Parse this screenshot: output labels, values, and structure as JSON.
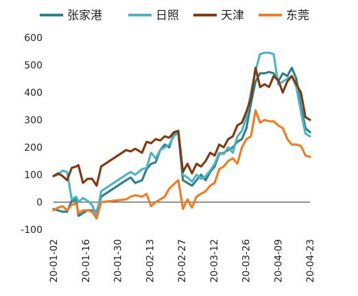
{
  "chart_data": {
    "type": "line",
    "title": "",
    "xlabel": "",
    "ylabel": "",
    "ylim": [
      -100,
      600
    ],
    "yticks": [
      -100,
      0,
      100,
      200,
      300,
      400,
      500,
      600
    ],
    "x_tick_labels": [
      "20-01-02",
      "20-01-16",
      "20-01-30",
      "20-02-13",
      "20-02-27",
      "20-03-12",
      "20-03-26",
      "20-04-09",
      "20-04-23"
    ],
    "x_range": [
      "2020-01-02",
      "2020-04-24"
    ],
    "grid": false,
    "legend_position": "top",
    "series": [
      {
        "name": "张家港",
        "color": "#2e7f8c",
        "points": [
          [
            "2020-01-02",
            -25
          ],
          [
            "2020-01-04",
            -30
          ],
          [
            "2020-01-06",
            -35
          ],
          [
            "2020-01-08",
            -35
          ],
          [
            "2020-01-10",
            5
          ],
          [
            "2020-01-12",
            10
          ],
          [
            "2020-01-13",
            -50
          ],
          [
            "2020-01-15",
            -40
          ],
          [
            "2020-01-17",
            -30
          ],
          [
            "2020-01-19",
            -30
          ],
          [
            "2020-01-21",
            -35
          ],
          [
            "2020-01-23",
            20
          ],
          [
            "2020-02-03",
            80
          ],
          [
            "2020-02-05",
            90
          ],
          [
            "2020-02-07",
            70
          ],
          [
            "2020-02-10",
            80
          ],
          [
            "2020-02-12",
            120
          ],
          [
            "2020-02-14",
            140
          ],
          [
            "2020-02-16",
            145
          ],
          [
            "2020-02-18",
            190
          ],
          [
            "2020-02-20",
            210
          ],
          [
            "2020-02-22",
            200
          ],
          [
            "2020-02-24",
            250
          ],
          [
            "2020-02-26",
            250
          ],
          [
            "2020-02-28",
            80
          ],
          [
            "2020-03-01",
            70
          ],
          [
            "2020-03-03",
            60
          ],
          [
            "2020-03-05",
            80
          ],
          [
            "2020-03-07",
            100
          ],
          [
            "2020-03-09",
            80
          ],
          [
            "2020-03-11",
            110
          ],
          [
            "2020-03-13",
            130
          ],
          [
            "2020-03-15",
            175
          ],
          [
            "2020-03-17",
            180
          ],
          [
            "2020-03-19",
            190
          ],
          [
            "2020-03-21",
            200
          ],
          [
            "2020-03-23",
            220
          ],
          [
            "2020-03-25",
            230
          ],
          [
            "2020-03-27",
            270
          ],
          [
            "2020-03-29",
            360
          ],
          [
            "2020-03-31",
            440
          ],
          [
            "2020-04-02",
            470
          ],
          [
            "2020-04-04",
            470
          ],
          [
            "2020-04-06",
            475
          ],
          [
            "2020-04-08",
            470
          ],
          [
            "2020-04-10",
            440
          ],
          [
            "2020-04-12",
            470
          ],
          [
            "2020-04-14",
            460
          ],
          [
            "2020-04-16",
            490
          ],
          [
            "2020-04-18",
            450
          ],
          [
            "2020-04-20",
            350
          ],
          [
            "2020-04-22",
            270
          ],
          [
            "2020-04-24",
            255
          ]
        ]
      },
      {
        "name": "日照",
        "color": "#4fb3c6",
        "points": [
          [
            "2020-01-02",
            95
          ],
          [
            "2020-01-04",
            100
          ],
          [
            "2020-01-06",
            115
          ],
          [
            "2020-01-08",
            110
          ],
          [
            "2020-01-10",
            10
          ],
          [
            "2020-01-12",
            20
          ],
          [
            "2020-01-13",
            0
          ],
          [
            "2020-01-15",
            15
          ],
          [
            "2020-01-17",
            5
          ],
          [
            "2020-01-19",
            -10
          ],
          [
            "2020-01-21",
            -50
          ],
          [
            "2020-01-23",
            40
          ],
          [
            "2020-02-03",
            100
          ],
          [
            "2020-02-05",
            110
          ],
          [
            "2020-02-07",
            100
          ],
          [
            "2020-02-10",
            120
          ],
          [
            "2020-02-12",
            125
          ],
          [
            "2020-02-14",
            180
          ],
          [
            "2020-02-16",
            160
          ],
          [
            "2020-02-18",
            190
          ],
          [
            "2020-02-20",
            200
          ],
          [
            "2020-02-22",
            210
          ],
          [
            "2020-02-24",
            240
          ],
          [
            "2020-02-26",
            255
          ],
          [
            "2020-02-28",
            100
          ],
          [
            "2020-03-01",
            90
          ],
          [
            "2020-03-03",
            75
          ],
          [
            "2020-03-05",
            100
          ],
          [
            "2020-03-07",
            85
          ],
          [
            "2020-03-09",
            95
          ],
          [
            "2020-03-11",
            115
          ],
          [
            "2020-03-13",
            140
          ],
          [
            "2020-03-15",
            180
          ],
          [
            "2020-03-17",
            175
          ],
          [
            "2020-03-19",
            200
          ],
          [
            "2020-03-21",
            180
          ],
          [
            "2020-03-23",
            240
          ],
          [
            "2020-03-25",
            260
          ],
          [
            "2020-03-27",
            310
          ],
          [
            "2020-03-29",
            400
          ],
          [
            "2020-03-31",
            480
          ],
          [
            "2020-04-02",
            540
          ],
          [
            "2020-04-04",
            545
          ],
          [
            "2020-04-06",
            545
          ],
          [
            "2020-04-08",
            540
          ],
          [
            "2020-04-10",
            430
          ],
          [
            "2020-04-12",
            440
          ],
          [
            "2020-04-14",
            450
          ],
          [
            "2020-04-16",
            460
          ],
          [
            "2020-04-18",
            420
          ],
          [
            "2020-04-20",
            330
          ],
          [
            "2020-04-22",
            250
          ],
          [
            "2020-04-24",
            240
          ]
        ]
      },
      {
        "name": "天津",
        "color": "#7f3a10",
        "points": [
          [
            "2020-01-02",
            95
          ],
          [
            "2020-01-04",
            105
          ],
          [
            "2020-01-06",
            95
          ],
          [
            "2020-01-08",
            80
          ],
          [
            "2020-01-10",
            125
          ],
          [
            "2020-01-12",
            130
          ],
          [
            "2020-01-13",
            135
          ],
          [
            "2020-01-15",
            70
          ],
          [
            "2020-01-17",
            85
          ],
          [
            "2020-01-19",
            85
          ],
          [
            "2020-01-21",
            60
          ],
          [
            "2020-01-23",
            130
          ],
          [
            "2020-02-03",
            190
          ],
          [
            "2020-02-05",
            185
          ],
          [
            "2020-02-07",
            195
          ],
          [
            "2020-02-10",
            180
          ],
          [
            "2020-02-12",
            220
          ],
          [
            "2020-02-14",
            215
          ],
          [
            "2020-02-16",
            230
          ],
          [
            "2020-02-18",
            225
          ],
          [
            "2020-02-20",
            240
          ],
          [
            "2020-02-22",
            235
          ],
          [
            "2020-02-24",
            255
          ],
          [
            "2020-02-26",
            260
          ],
          [
            "2020-02-28",
            110
          ],
          [
            "2020-03-01",
            140
          ],
          [
            "2020-03-03",
            105
          ],
          [
            "2020-03-05",
            140
          ],
          [
            "2020-03-07",
            130
          ],
          [
            "2020-03-09",
            150
          ],
          [
            "2020-03-11",
            180
          ],
          [
            "2020-03-13",
            170
          ],
          [
            "2020-03-15",
            210
          ],
          [
            "2020-03-17",
            200
          ],
          [
            "2020-03-19",
            230
          ],
          [
            "2020-03-21",
            240
          ],
          [
            "2020-03-23",
            280
          ],
          [
            "2020-03-25",
            290
          ],
          [
            "2020-03-27",
            330
          ],
          [
            "2020-03-29",
            380
          ],
          [
            "2020-03-31",
            490
          ],
          [
            "2020-04-02",
            420
          ],
          [
            "2020-04-04",
            430
          ],
          [
            "2020-04-06",
            420
          ],
          [
            "2020-04-08",
            460
          ],
          [
            "2020-04-10",
            445
          ],
          [
            "2020-04-12",
            400
          ],
          [
            "2020-04-14",
            440
          ],
          [
            "2020-04-16",
            460
          ],
          [
            "2020-04-18",
            430
          ],
          [
            "2020-04-20",
            400
          ],
          [
            "2020-04-22",
            310
          ],
          [
            "2020-04-24",
            300
          ]
        ]
      },
      {
        "name": "东莞",
        "color": "#ed7d22",
        "points": [
          [
            "2020-01-02",
            -30
          ],
          [
            "2020-01-04",
            -20
          ],
          [
            "2020-01-06",
            -15
          ],
          [
            "2020-01-08",
            -30
          ],
          [
            "2020-01-10",
            -10
          ],
          [
            "2020-01-12",
            -5
          ],
          [
            "2020-01-13",
            -40
          ],
          [
            "2020-01-15",
            -30
          ],
          [
            "2020-01-17",
            -30
          ],
          [
            "2020-01-19",
            -35
          ],
          [
            "2020-01-21",
            -60
          ],
          [
            "2020-01-23",
            0
          ],
          [
            "2020-02-03",
            10
          ],
          [
            "2020-02-05",
            20
          ],
          [
            "2020-02-07",
            25
          ],
          [
            "2020-02-10",
            20
          ],
          [
            "2020-02-12",
            30
          ],
          [
            "2020-02-14",
            -15
          ],
          [
            "2020-02-16",
            0
          ],
          [
            "2020-02-18",
            10
          ],
          [
            "2020-02-20",
            20
          ],
          [
            "2020-02-22",
            50
          ],
          [
            "2020-02-24",
            65
          ],
          [
            "2020-02-26",
            80
          ],
          [
            "2020-02-28",
            -25
          ],
          [
            "2020-03-01",
            10
          ],
          [
            "2020-03-03",
            -20
          ],
          [
            "2020-03-05",
            20
          ],
          [
            "2020-03-07",
            30
          ],
          [
            "2020-03-09",
            40
          ],
          [
            "2020-03-11",
            60
          ],
          [
            "2020-03-13",
            70
          ],
          [
            "2020-03-15",
            120
          ],
          [
            "2020-03-17",
            130
          ],
          [
            "2020-03-19",
            150
          ],
          [
            "2020-03-21",
            160
          ],
          [
            "2020-03-23",
            140
          ],
          [
            "2020-03-25",
            200
          ],
          [
            "2020-03-27",
            230
          ],
          [
            "2020-03-29",
            240
          ],
          [
            "2020-03-31",
            335
          ],
          [
            "2020-04-02",
            290
          ],
          [
            "2020-04-04",
            300
          ],
          [
            "2020-04-06",
            295
          ],
          [
            "2020-04-08",
            295
          ],
          [
            "2020-04-10",
            280
          ],
          [
            "2020-04-12",
            270
          ],
          [
            "2020-04-14",
            230
          ],
          [
            "2020-04-16",
            210
          ],
          [
            "2020-04-18",
            210
          ],
          [
            "2020-04-20",
            205
          ],
          [
            "2020-04-22",
            170
          ],
          [
            "2020-04-24",
            165
          ]
        ]
      }
    ]
  }
}
